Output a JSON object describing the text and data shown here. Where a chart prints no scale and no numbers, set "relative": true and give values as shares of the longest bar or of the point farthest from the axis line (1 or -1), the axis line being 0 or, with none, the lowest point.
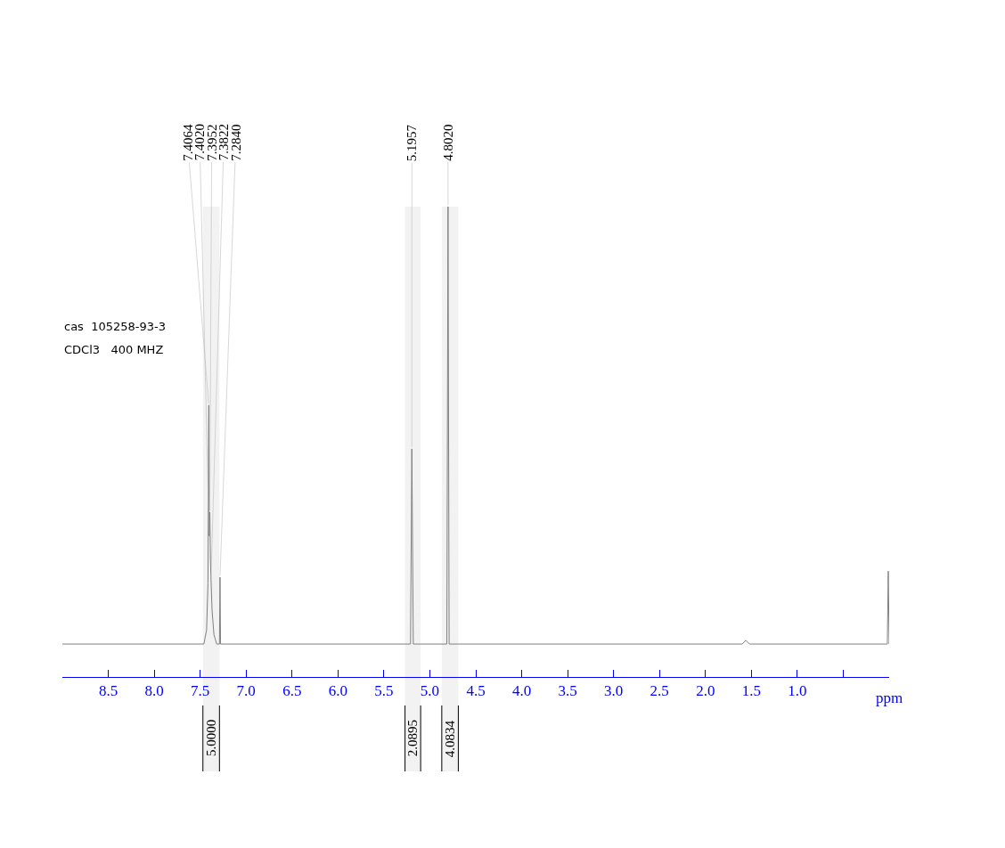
{
  "chart_data": {
    "type": "line",
    "relative": true,
    "xlabel": "ppm",
    "color": "#808080",
    "tick_labels": "x",
    "x": [
      9.0,
      7.46,
      7.43,
      7.415,
      7.406,
      7.402,
      7.395,
      7.388,
      7.382,
      7.37,
      7.35,
      7.32,
      7.29,
      7.284,
      7.278,
      5.21,
      5.196,
      5.18,
      4.815,
      4.802,
      4.79,
      1.6,
      1.56,
      1.52,
      0.02,
      0.01,
      0.0
    ],
    "values": [
      0.07,
      0.07,
      0.1,
      0.2,
      0.578,
      0.3,
      0.35,
      0.25,
      0.208,
      0.14,
      0.09,
      0.07,
      0.07,
      0.212,
      0.07,
      0.07,
      0.485,
      0.07,
      0.07,
      1.0,
      0.07,
      0.07,
      0.078,
      0.07,
      0.07,
      0.225,
      0.07
    ],
    "xlim": [
      9.0,
      0.0
    ],
    "xticks": [
      {
        "value": 8.5,
        "label": "8.5"
      },
      {
        "value": 8.0,
        "label": "8.0"
      },
      {
        "value": 7.5,
        "label": "7.5"
      },
      {
        "value": 7.0,
        "label": "7.0"
      },
      {
        "value": 6.5,
        "label": "6.5"
      },
      {
        "value": 6.0,
        "label": "6.0"
      },
      {
        "value": 5.5,
        "label": "5.5"
      },
      {
        "value": 5.0,
        "label": "5.0"
      },
      {
        "value": 4.5,
        "label": "4.5"
      },
      {
        "value": 4.0,
        "label": "4.0"
      },
      {
        "value": 3.5,
        "label": "3.5"
      },
      {
        "value": 3.0,
        "label": "3.0"
      },
      {
        "value": 2.5,
        "label": "2.5"
      },
      {
        "value": 2.0,
        "label": "2.0"
      },
      {
        "value": 1.5,
        "label": "1.5"
      },
      {
        "value": 1.0,
        "label": "1.0"
      },
      {
        "value": 0.5,
        "label": null
      }
    ],
    "bands": [
      {
        "axis": "x",
        "from": 7.47,
        "to": 7.29,
        "label": "5.0000"
      },
      {
        "axis": "x",
        "from": 5.27,
        "to": 5.1,
        "label": "2.0895"
      },
      {
        "axis": "x",
        "from": 4.87,
        "to": 4.69,
        "label": "4.0834"
      }
    ],
    "annotations": [
      "cas  105258-93-3",
      "CDCl3   400 MHZ",
      {
        "text": "7.4064",
        "x": 7.4064,
        "y": 0.578
      },
      {
        "text": "7.4020",
        "x": 7.402,
        "y": 0.3
      },
      {
        "text": "7.3952",
        "x": 7.3952,
        "y": 0.35
      },
      {
        "text": "7.3822",
        "x": 7.3822,
        "y": 0.208
      },
      {
        "text": "7.2840",
        "x": 7.284,
        "y": 0.212
      },
      {
        "text": "5.1957",
        "x": 5.1957,
        "y": 0.485
      },
      {
        "text": "4.8020",
        "x": 4.802,
        "y": 1.0
      }
    ]
  }
}
